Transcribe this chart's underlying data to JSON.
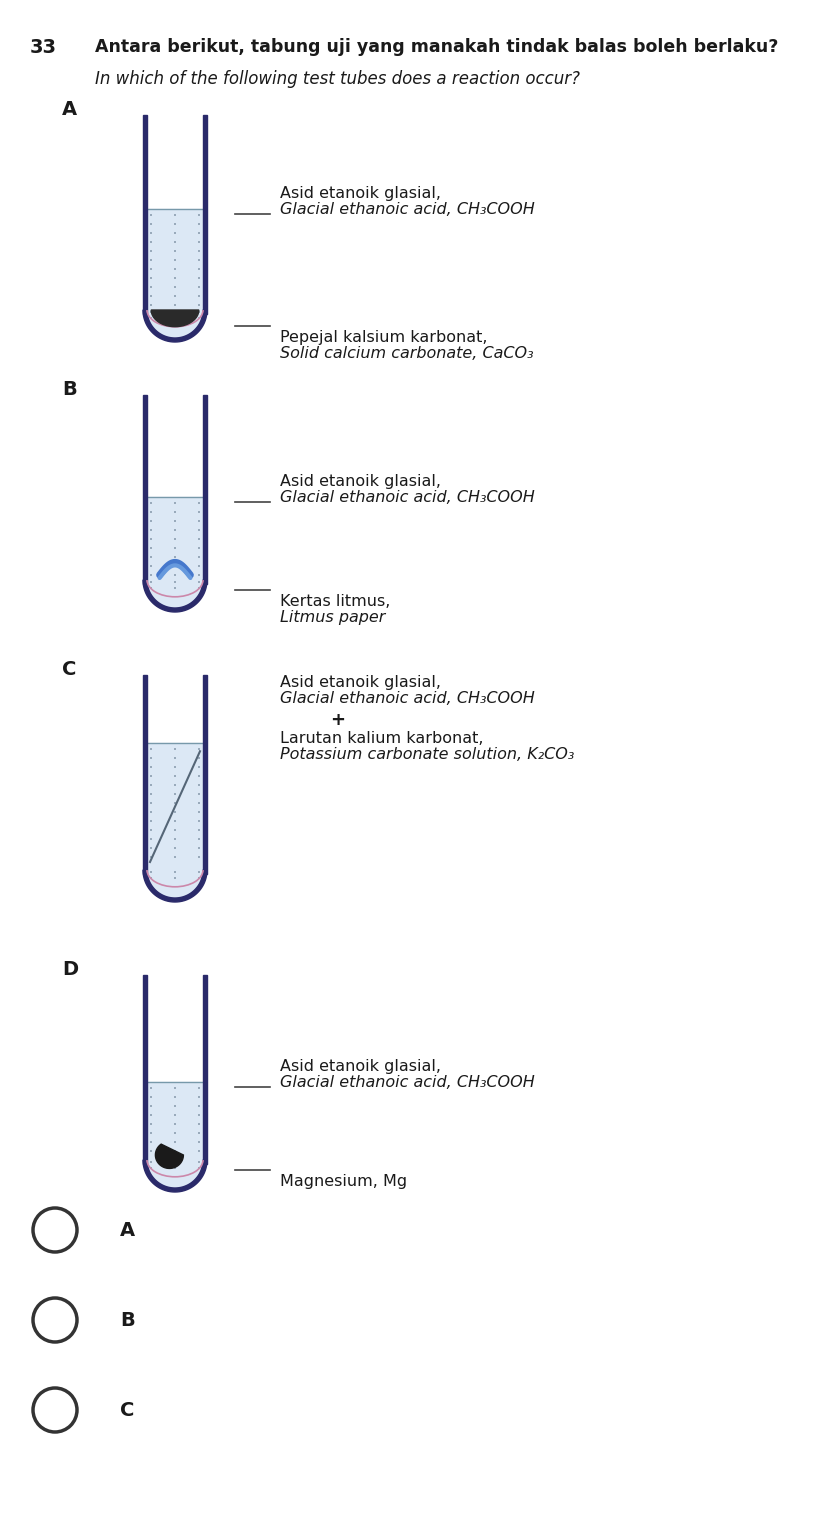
{
  "title_number": "33",
  "title_malay": "Antara berikut, tabung uji yang manakah tindak balas boleh berlaku?",
  "title_english": "In which of the following test tubes does a reaction occur?",
  "labels": {
    "A": {
      "line1": "Asid etanoik glasial,",
      "line2": "Glacial ethanoic acid, CH₃COOH",
      "line3": "Pepejal kalsium karbonat,",
      "line4": "Solid calcium carbonate, CaCO₃"
    },
    "B": {
      "line1": "Asid etanoik glasial,",
      "line2": "Glacial ethanoic acid, CH₃COOH",
      "line3": "Kertas litmus,",
      "line4": "Litmus paper"
    },
    "C": {
      "line1": "Asid etanoik glasial,",
      "line2": "Glacial ethanoic acid, CH₃COOH",
      "line3": "+",
      "line4": "Larutan kalium karbonat,",
      "line5": "Potassium carbonate solution, K₂CO₃"
    },
    "D": {
      "line1": "Asid etanoik glasial,",
      "line2": "Glacial ethanoic acid, CH₃COOH",
      "line3": "Magnesium, Mg"
    }
  },
  "answers": [
    "A",
    "B",
    "C"
  ],
  "bg_color": "#ffffff",
  "text_color": "#1a1a1a",
  "tube_color": "#2a2a6a",
  "liquid_color": "#dce8f5",
  "dot_color": "#aabbcc"
}
